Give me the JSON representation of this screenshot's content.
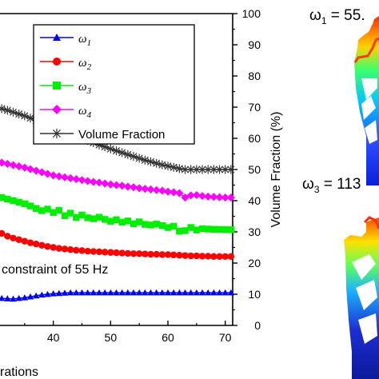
{
  "chart_data": {
    "type": "line",
    "xlabel": "rations",
    "ylabel": "",
    "y2label": "Volume Fraction (%)",
    "annotation": "constraint of 55 Hz",
    "x_ticks": [
      "40",
      "50",
      "60",
      "70"
    ],
    "y2_ticks": [
      "0",
      "10",
      "20",
      "30",
      "40",
      "50",
      "60",
      "70",
      "80",
      "90",
      "100"
    ],
    "x_range": [
      31,
      71
    ],
    "y2_range": [
      0,
      100
    ],
    "grid": false,
    "legend_position": "top-right",
    "series": [
      {
        "name": "ω",
        "subscript": "1",
        "color": "#0000ff",
        "marker": "triangle",
        "axis": "left",
        "x": [
          31,
          32,
          33,
          34,
          35,
          36,
          37,
          38,
          39,
          40,
          41,
          42,
          43,
          44,
          45,
          46,
          47,
          48,
          49,
          50,
          51,
          52,
          53,
          54,
          55,
          56,
          57,
          58,
          59,
          60,
          61,
          62,
          63,
          64,
          65,
          66,
          67,
          68,
          69,
          70,
          71
        ],
        "values": [
          8.7,
          8.6,
          8.5,
          8.7,
          8.9,
          9.2,
          9.5,
          9.8,
          10.0,
          10.2,
          10.3,
          10.4,
          10.5,
          10.5,
          10.5,
          10.5,
          10.5,
          10.5,
          10.5,
          10.5,
          10.5,
          10.5,
          10.5,
          10.5,
          10.5,
          10.5,
          10.5,
          10.5,
          10.5,
          10.5,
          10.5,
          10.5,
          10.5,
          10.5,
          10.5,
          10.5,
          10.5,
          10.5,
          10.5,
          10.5,
          10.5
        ]
      },
      {
        "name": "ω",
        "subscript": "2",
        "color": "#ff0000",
        "marker": "circle",
        "axis": "left",
        "x": [
          31,
          32,
          33,
          34,
          35,
          36,
          37,
          38,
          39,
          40,
          41,
          42,
          43,
          44,
          45,
          46,
          47,
          48,
          49,
          50,
          51,
          52,
          53,
          54,
          55,
          56,
          57,
          58,
          59,
          60,
          61,
          62,
          63,
          64,
          65,
          66,
          67,
          68,
          69,
          70,
          71
        ],
        "values": [
          29.5,
          28.6,
          28.0,
          27.5,
          27.0,
          26.5,
          26.1,
          25.7,
          25.3,
          25.0,
          24.7,
          24.5,
          24.3,
          24.1,
          24.0,
          23.8,
          23.7,
          23.6,
          23.5,
          23.4,
          23.3,
          23.2,
          23.1,
          23.0,
          23.0,
          22.9,
          22.8,
          22.8,
          22.7,
          22.7,
          22.6,
          22.5,
          22.4,
          22.3,
          22.3,
          22.2,
          22.2,
          22.1,
          22.1,
          22.1,
          22.1
        ]
      },
      {
        "name": "ω",
        "subscript": "3",
        "color": "#00ee00",
        "marker": "square",
        "axis": "left",
        "x": [
          31,
          32,
          33,
          34,
          35,
          36,
          37,
          38,
          39,
          40,
          41,
          42,
          43,
          44,
          45,
          46,
          47,
          48,
          49,
          50,
          51,
          52,
          53,
          54,
          55,
          56,
          57,
          58,
          59,
          60,
          61,
          62,
          63,
          64,
          65,
          66,
          67,
          68,
          69,
          70,
          71
        ],
        "values": [
          41.0,
          40.5,
          40.0,
          39.5,
          39.0,
          38.3,
          37.5,
          36.8,
          37.3,
          36.2,
          36.9,
          35.2,
          36.0,
          34.6,
          35.4,
          34.5,
          34.2,
          34.7,
          34.0,
          33.4,
          33.9,
          33.1,
          33.5,
          32.6,
          33.2,
          32.4,
          32.2,
          32.5,
          32.0,
          31.4,
          31.8,
          30.2,
          30.4,
          31.4,
          30.6,
          31.0,
          30.9,
          30.8,
          30.8,
          30.7,
          30.7
        ]
      },
      {
        "name": "ω",
        "subscript": "4",
        "color": "#ff00ff",
        "marker": "diamond",
        "axis": "left",
        "x": [
          31,
          32,
          33,
          34,
          35,
          36,
          37,
          38,
          39,
          40,
          41,
          42,
          43,
          44,
          45,
          46,
          47,
          48,
          49,
          50,
          51,
          52,
          53,
          54,
          55,
          56,
          57,
          58,
          59,
          60,
          61,
          62,
          63,
          64,
          65,
          66,
          67,
          68,
          69,
          70,
          71
        ],
        "values": [
          52.2,
          51.8,
          51.4,
          51.0,
          50.6,
          50.1,
          49.6,
          49.1,
          48.6,
          48.1,
          47.8,
          47.5,
          47.2,
          46.9,
          46.6,
          46.3,
          46.0,
          45.8,
          45.5,
          45.2,
          45.0,
          44.8,
          44.5,
          44.3,
          44.0,
          43.8,
          43.6,
          43.4,
          43.2,
          42.9,
          42.7,
          42.4,
          41.0,
          41.7,
          41.8,
          41.5,
          41.3,
          41.2,
          41.1,
          41.0,
          41.0
        ]
      },
      {
        "name": "Volume Fraction",
        "color": "#333333",
        "marker": "asterisk",
        "axis": "right",
        "x": [
          31,
          32,
          33,
          34,
          35,
          36,
          37,
          38,
          39,
          40,
          41,
          42,
          43,
          44,
          45,
          46,
          47,
          48,
          49,
          50,
          51,
          52,
          53,
          54,
          55,
          56,
          57,
          58,
          59,
          60,
          61,
          62,
          63,
          64,
          65,
          66,
          67,
          68,
          69,
          70,
          71
        ],
        "values": [
          69.5,
          69.0,
          68.4,
          67.8,
          67.2,
          66.5,
          65.8,
          65.0,
          64.3,
          63.5,
          62.8,
          62.1,
          61.4,
          60.7,
          60.0,
          59.3,
          58.6,
          57.9,
          57.3,
          56.6,
          56.0,
          55.4,
          54.8,
          54.2,
          53.6,
          53.0,
          52.5,
          52.0,
          51.5,
          51.1,
          50.7,
          50.3,
          50.0,
          50.0,
          50.0,
          50.0,
          50.0,
          50.0,
          50.0,
          50.0,
          50.0
        ]
      }
    ]
  },
  "right_panel": {
    "top_label": "ω",
    "top_label_sub": "1",
    "top_label_value": " = 55.",
    "bottom_label": "ω",
    "bottom_label_sub": "3",
    "bottom_label_value": " = 113"
  }
}
